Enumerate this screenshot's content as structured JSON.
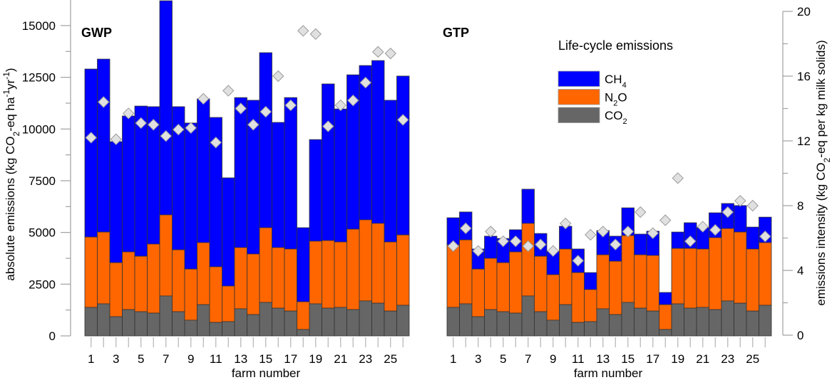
{
  "chart_data": {
    "type": "bar",
    "stacked": true,
    "legend": {
      "title": "Life-cycle emissions",
      "placement": "top-right",
      "entries": [
        {
          "key": "CH4",
          "label": "CH",
          "sub": "4",
          "color": "#0000ff"
        },
        {
          "key": "N2O",
          "label": "N",
          "sub": "2",
          "tail": "O",
          "color": "#ff6600"
        },
        {
          "key": "CO2",
          "label": "CO",
          "sub": "2",
          "color": "#666666"
        }
      ]
    },
    "left_axis": {
      "label_parts": [
        "absolute emissions (kg CO",
        "2",
        "-eq ha",
        "-1",
        "yr",
        "-1",
        ")"
      ],
      "ylim": [
        0,
        16200
      ],
      "ticks": [
        0,
        2500,
        5000,
        7500,
        10000,
        12500,
        15000
      ],
      "tick_labels": [
        "0",
        "2500",
        "5000",
        "7500",
        "10000",
        "12500",
        "15000"
      ],
      "minor_step": 1250
    },
    "right_axis": {
      "label_parts": [
        "emissions intensity (kg CO",
        "2",
        "-eq per kg milk solids)"
      ],
      "ylim": [
        0,
        20
      ],
      "ticks": [
        0,
        4,
        8,
        12,
        16,
        20
      ],
      "tick_labels": [
        "0",
        "4",
        "8",
        "12",
        "16",
        "20"
      ],
      "minor_step": 2
    },
    "xlabel": "farm number",
    "categories": [
      1,
      2,
      3,
      4,
      5,
      6,
      7,
      8,
      9,
      10,
      11,
      12,
      13,
      14,
      15,
      16,
      17,
      18,
      19,
      20,
      21,
      22,
      23,
      24,
      25,
      26
    ],
    "x_tick_labels": [
      "1",
      "",
      "3",
      "",
      "5",
      "",
      "7",
      "",
      "9",
      "",
      "11",
      "",
      "13",
      "",
      "15",
      "",
      "17",
      "",
      "19",
      "",
      "21",
      "",
      "23",
      "",
      "25",
      ""
    ],
    "panels": [
      {
        "title": "GWP",
        "series": [
          {
            "name": "CO2",
            "values": [
              1380,
              1550,
              930,
              1270,
              1170,
              1100,
              1930,
              1170,
              760,
              1510,
              650,
              690,
              1310,
              1030,
              1620,
              1340,
              1200,
              310,
              1550,
              1340,
              1380,
              1270,
              1690,
              1580,
              1200,
              1480
            ]
          },
          {
            "name": "N2O",
            "values": [
              3400,
              3470,
              2610,
              2790,
              2680,
              3340,
              3920,
              2990,
              2470,
              3000,
              2690,
              1720,
              2960,
              2930,
              3610,
              2930,
              3000,
              1340,
              3030,
              3270,
              3160,
              3890,
              3920,
              3860,
              3340,
              3400
            ]
          },
          {
            "name": "CH4",
            "values": [
              8120,
              8360,
              5850,
              6570,
              7260,
              6640,
              10350,
              6920,
              7060,
              6950,
              7220,
              5230,
              7250,
              7430,
              8460,
              6050,
              7320,
              3580,
              4910,
              7570,
              6430,
              7460,
              7460,
              7870,
              6850,
              7680
            ]
          }
        ],
        "intensity": {
          "name": "emissions intensity",
          "axis": "right",
          "values": [
            12.2,
            14.4,
            12.1,
            13.7,
            13.1,
            13.0,
            12.3,
            12.7,
            12.8,
            14.6,
            11.9,
            15.1,
            14.0,
            13.0,
            13.8,
            16.0,
            14.2,
            18.8,
            18.6,
            12.9,
            14.2,
            14.5,
            15.6,
            17.5,
            17.4,
            13.3
          ]
        }
      },
      {
        "title": "GTP",
        "series": [
          {
            "name": "CO2",
            "values": [
              1380,
              1550,
              930,
              1270,
              1170,
              1100,
              1930,
              1170,
              760,
              1510,
              650,
              690,
              1310,
              1030,
              1620,
              1340,
              1200,
              310,
              1550,
              1340,
              1380,
              1270,
              1690,
              1580,
              1200,
              1480
            ]
          },
          {
            "name": "N2O",
            "values": [
              3020,
              3090,
              2300,
              2480,
              2370,
              2960,
              3510,
              2680,
              2200,
              2690,
              2410,
              1550,
              2610,
              2580,
              3230,
              2580,
              2690,
              1200,
              2680,
              2890,
              2820,
              3480,
              3500,
              3440,
              3000,
              3030
            ]
          },
          {
            "name": "CH4",
            "values": [
              1310,
              1350,
              970,
              1070,
              1170,
              1070,
              1650,
              1100,
              1130,
              1100,
              1140,
              820,
              1170,
              1210,
              1340,
              1000,
              1170,
              590,
              790,
              1240,
              1030,
              1200,
              1210,
              1280,
              1060,
              1230
            ]
          }
        ],
        "intensity": {
          "name": "emissions intensity",
          "axis": "right",
          "values": [
            5.5,
            6.6,
            5.2,
            6.4,
            5.8,
            5.8,
            5.5,
            5.6,
            5.2,
            6.9,
            4.6,
            6.2,
            6.4,
            5.6,
            6.4,
            7.6,
            6.3,
            7.1,
            9.7,
            5.8,
            6.7,
            6.5,
            7.6,
            8.3,
            8.0,
            6.1
          ]
        }
      }
    ]
  }
}
